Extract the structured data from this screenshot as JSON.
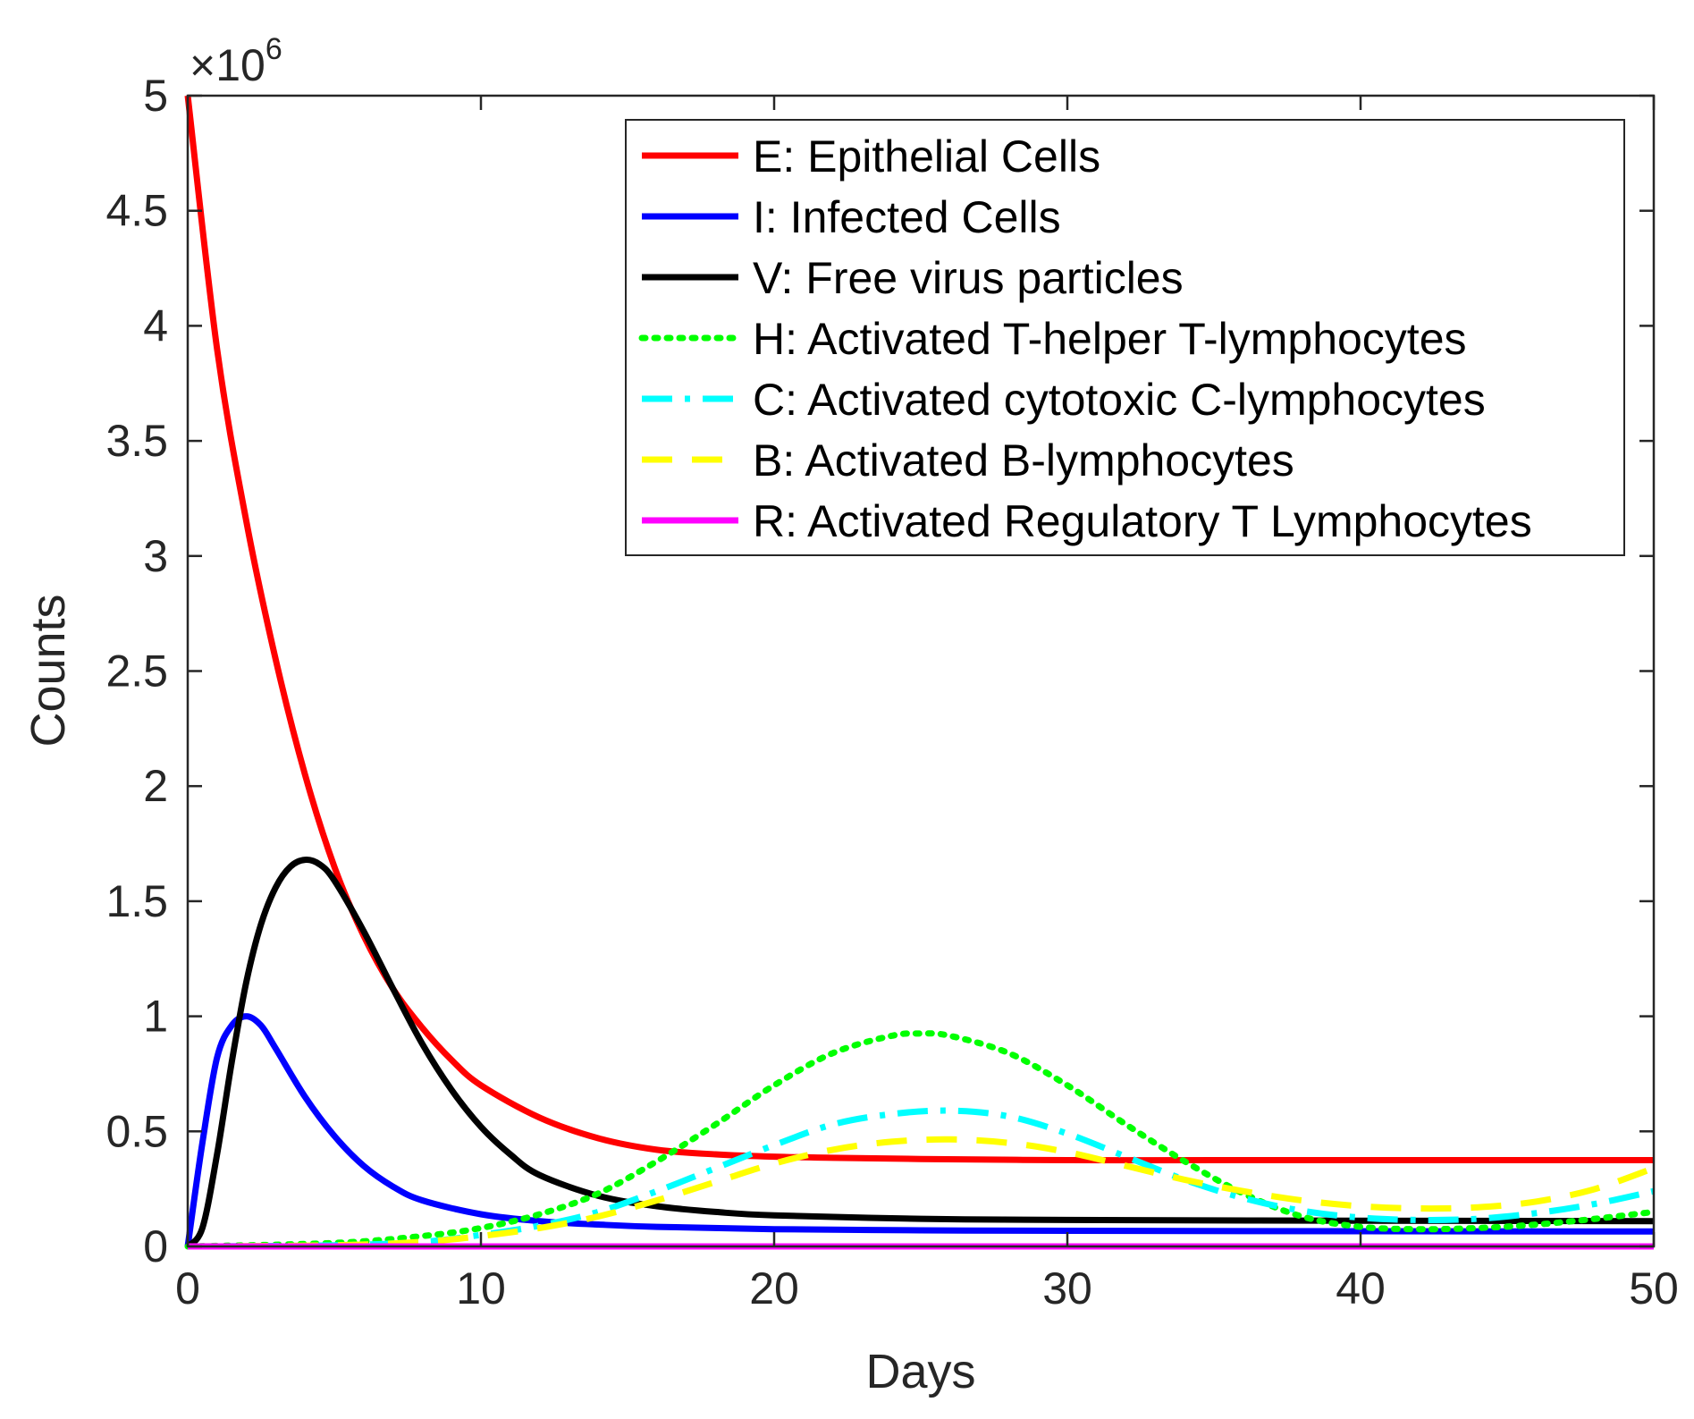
{
  "chart_data": {
    "type": "line",
    "title": "",
    "xlabel": "Days",
    "ylabel": "Counts",
    "xlim": [
      0,
      50
    ],
    "ylim": [
      0,
      5000000
    ],
    "xticks": [
      "0",
      "10",
      "20",
      "30",
      "40",
      "50"
    ],
    "yticks": [
      "0",
      "0.5",
      "1",
      "1.5",
      "2",
      "2.5",
      "3",
      "3.5",
      "4",
      "4.5",
      "5"
    ],
    "y_multiplier": {
      "base": "×10",
      "exponent": "6"
    },
    "grid": false,
    "legend_position": "top-right",
    "series": [
      {
        "name": "E: Epithelial Cells",
        "color": "#ff0000",
        "dash": "solid",
        "x": [
          0,
          1,
          2,
          3,
          4,
          5,
          6,
          7,
          8,
          9,
          10,
          12,
          14,
          16,
          18,
          20,
          22,
          25,
          30,
          35,
          40,
          45,
          50
        ],
        "y": [
          5000000,
          3900000,
          3150000,
          2550000,
          2050000,
          1650000,
          1350000,
          1120000,
          950000,
          810000,
          700000,
          560000,
          470000,
          420000,
          400000,
          390000,
          385000,
          380000,
          375000,
          375000,
          375000,
          375000,
          375000
        ]
      },
      {
        "name": "I: Infected Cells",
        "color": "#0000ff",
        "dash": "solid",
        "x": [
          0,
          0.5,
          1,
          1.5,
          2,
          2.5,
          3,
          4,
          5,
          6,
          7,
          8,
          10,
          12,
          14,
          16,
          20,
          25,
          30,
          40,
          50
        ],
        "y": [
          0,
          450000,
          820000,
          960000,
          1000000,
          960000,
          860000,
          650000,
          480000,
          350000,
          260000,
          200000,
          140000,
          110000,
          95000,
          85000,
          75000,
          70000,
          68000,
          66000,
          65000
        ]
      },
      {
        "name": "V: Free virus particles",
        "color": "#000000",
        "dash": "solid",
        "x": [
          0,
          0.5,
          1,
          1.5,
          2,
          2.5,
          3,
          3.5,
          4,
          4.5,
          5,
          6,
          7,
          8,
          9,
          10,
          11,
          12,
          14,
          16,
          18,
          20,
          25,
          30,
          40,
          50
        ],
        "y": [
          0,
          80000,
          400000,
          800000,
          1150000,
          1400000,
          1560000,
          1650000,
          1680000,
          1660000,
          1590000,
          1370000,
          1120000,
          880000,
          680000,
          520000,
          400000,
          310000,
          220000,
          175000,
          150000,
          135000,
          120000,
          115000,
          112000,
          110000
        ]
      },
      {
        "name": "H: Activated T-helper T-lymphocytes",
        "color": "#00ff00",
        "dash": "dotted",
        "x": [
          0,
          5,
          8,
          10,
          12,
          14,
          16,
          18,
          20,
          22,
          24,
          25,
          26,
          28,
          30,
          32,
          34,
          36,
          38,
          40,
          42,
          44,
          46,
          48,
          50
        ],
        "y": [
          0,
          15000,
          45000,
          80000,
          140000,
          230000,
          370000,
          530000,
          700000,
          840000,
          915000,
          925000,
          915000,
          840000,
          700000,
          530000,
          370000,
          230000,
          130000,
          85000,
          75000,
          80000,
          95000,
          120000,
          150000
        ]
      },
      {
        "name": "C: Activated cytotoxic C-lymphocytes",
        "color": "#00ffff",
        "dash": "dashdot",
        "x": [
          0,
          5,
          8,
          10,
          12,
          14,
          16,
          18,
          20,
          22,
          24,
          26,
          28,
          30,
          32,
          34,
          36,
          38,
          40,
          42,
          44,
          46,
          48,
          50
        ],
        "y": [
          0,
          5000,
          20000,
          50000,
          90000,
          150000,
          240000,
          340000,
          440000,
          530000,
          575000,
          590000,
          565000,
          490000,
          390000,
          290000,
          210000,
          155000,
          125000,
          115000,
          120000,
          145000,
          185000,
          240000
        ]
      },
      {
        "name": "B: Activated B-lymphocytes",
        "color": "#ffff00",
        "dash": "dashed",
        "x": [
          0,
          5,
          8,
          10,
          12,
          14,
          16,
          18,
          20,
          22,
          24,
          26,
          28,
          30,
          32,
          34,
          36,
          38,
          40,
          42,
          44,
          46,
          48,
          50
        ],
        "y": [
          0,
          5000,
          20000,
          45000,
          80000,
          130000,
          200000,
          280000,
          360000,
          420000,
          455000,
          465000,
          450000,
          410000,
          350000,
          290000,
          240000,
          200000,
          175000,
          165000,
          170000,
          195000,
          250000,
          340000
        ]
      },
      {
        "name": "R: Activated Regulatory T Lymphocytes",
        "color": "#ff00ff",
        "dash": "solid",
        "x": [
          0,
          10,
          20,
          30,
          40,
          50
        ],
        "y": [
          0,
          0,
          0,
          0,
          0,
          0
        ]
      }
    ]
  }
}
